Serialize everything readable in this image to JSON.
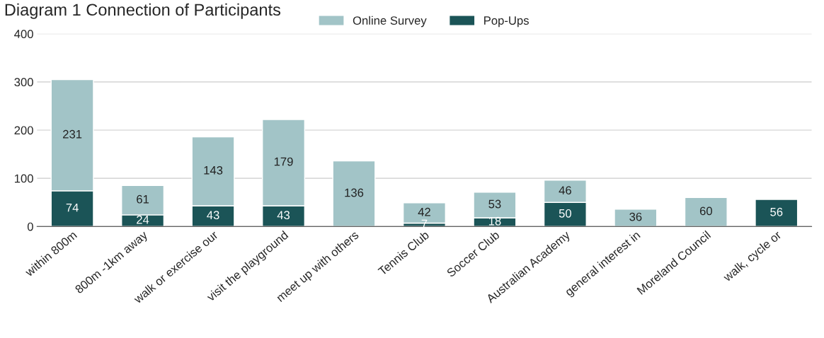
{
  "chart_data": {
    "type": "bar",
    "title": "Diagram 1 Connection of Participants",
    "categories": [
      "within 800m",
      "800m -1km away",
      "walk or exercise our",
      "visit the playground",
      "meet up with others",
      "Tennis Club",
      "Soccer Club",
      "Australian Academy",
      "general interest in",
      "Moreland Council",
      "walk, cycle or"
    ],
    "stacked": true,
    "series": [
      {
        "name": "Pop-Ups",
        "color": "#1b5457",
        "values": [
          74,
          24,
          43,
          43,
          null,
          7,
          18,
          50,
          null,
          null,
          56
        ]
      },
      {
        "name": "Online Survey",
        "color": "#a2c4c7",
        "values": [
          231,
          61,
          143,
          179,
          136,
          42,
          53,
          46,
          36,
          60,
          null
        ]
      }
    ],
    "ylim": [
      0,
      400
    ],
    "yticks": [
      0,
      100,
      200,
      300,
      400
    ],
    "grid": "y",
    "legend": "top",
    "data_labels": true
  }
}
